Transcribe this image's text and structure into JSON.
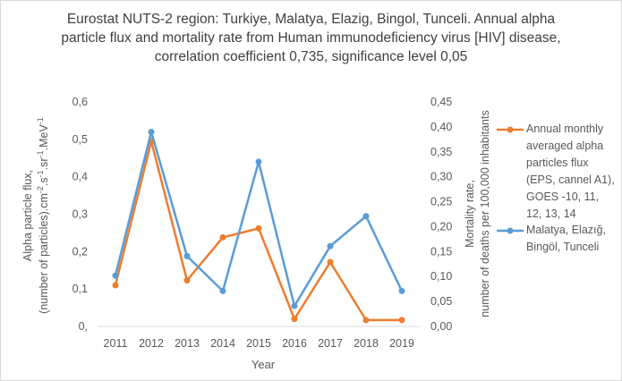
{
  "title": {
    "line1": "Eurostat NUTS-2 region: Turkiye,  Malatya, Elazig, Bingol, Tunceli. Annual alpha",
    "line2": "particle flux and mortality rate from Human immunodeficiency virus [HIV] disease,",
    "line3": "correlation coefficient 0,735, significance level 0,05"
  },
  "chart_data": {
    "type": "line",
    "x": [
      2011,
      2012,
      2013,
      2014,
      2015,
      2016,
      2017,
      2018,
      2019
    ],
    "xlabel": "Year",
    "ylabel_left": "Alpha particle flux, (number of particles).cm-2.s-1.sr-1.MeV-1",
    "ylabel_left_lines": [
      "Alpha particle flux,",
      "(number of particles).cm"
    ],
    "ylabel_right_lines": [
      "Mortality rate,",
      "number of deaths per 100,000 inhabitants"
    ],
    "ylim_left": [
      0,
      0.6
    ],
    "ylim_right": [
      0,
      0.45
    ],
    "left_ticks": [
      "0,",
      "0,1",
      "0,2",
      "0,3",
      "0,4",
      "0,5",
      "0,6"
    ],
    "right_ticks": [
      "0,00",
      "0,05",
      "0,10",
      "0,15",
      "0,20",
      "0,25",
      "0,30",
      "0,35",
      "0,40",
      "0,45"
    ],
    "grid": false,
    "legend_position": "right",
    "series": [
      {
        "name": "Annual monthly averaged alpha particles flux (EPS, cannel A1), GOES -10, 11, 12, 13, 14",
        "legend_lines": [
          "Annual monthly",
          "averaged alpha",
          "particles flux",
          "(EPS, cannel A1),",
          "GOES -10, 11,",
          "12, 13, 14"
        ],
        "axis": "left",
        "color": "#ed7d31",
        "values": [
          0.11,
          0.495,
          0.123,
          0.238,
          0.262,
          0.02,
          0.172,
          0.017,
          0.017
        ]
      },
      {
        "name": "Malatya, Elazığ, Bingöl, Tunceli",
        "legend_lines": [
          "Malatya, Elazığ,",
          "Bingöl, Tunceli"
        ],
        "axis": "right",
        "color": "#5b9bd5",
        "values": [
          0.102,
          0.39,
          0.141,
          0.071,
          0.33,
          0.041,
          0.161,
          0.221,
          0.071
        ]
      }
    ]
  }
}
